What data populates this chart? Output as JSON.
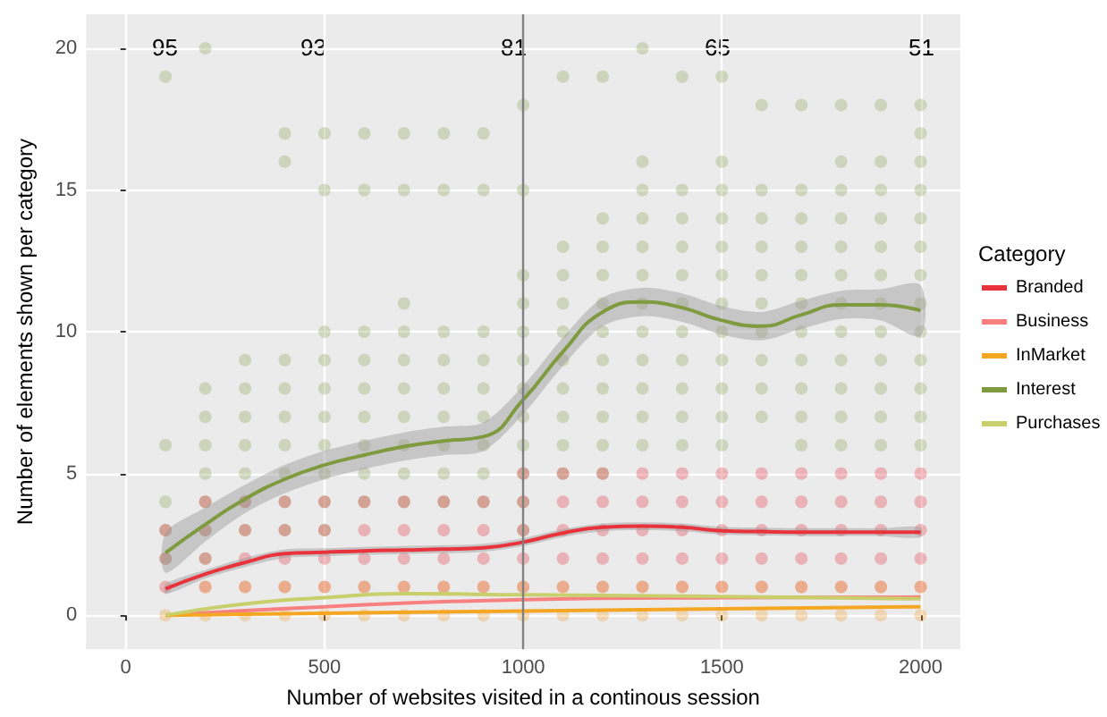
{
  "chart_data": {
    "type": "line",
    "xlabel": "Number of websites visited in a continous session",
    "ylabel": "Number of elements shown per category",
    "legend_title": "Category",
    "legend": "right",
    "grid": true,
    "xlim": [
      -100,
      2100
    ],
    "ylim": [
      -1.2,
      21.2
    ],
    "xticks": [
      0,
      500,
      1000,
      1500,
      2000
    ],
    "yticks": [
      0,
      5,
      10,
      15,
      20
    ],
    "ref_lines": [
      {
        "axis": "x",
        "value": 1000,
        "color": "#7f7f7f"
      }
    ],
    "annotations": [
      "95",
      "93",
      "81",
      "65",
      "51"
    ],
    "series": [
      {
        "type": "scatter",
        "marker": "circle",
        "color": "#8a9a50",
        "x": [
          100,
          100,
          100,
          100,
          100,
          200,
          200,
          200,
          200,
          200,
          200,
          200,
          200,
          300,
          300,
          300,
          300,
          300,
          300,
          300,
          400,
          400,
          400,
          400,
          400,
          400,
          400,
          400,
          400,
          500,
          500,
          500,
          500,
          500,
          500,
          500,
          500,
          500,
          500,
          600,
          600,
          600,
          600,
          600,
          600,
          600,
          600,
          600,
          700,
          700,
          700,
          700,
          700,
          700,
          700,
          700,
          700,
          700,
          800,
          800,
          800,
          800,
          800,
          800,
          800,
          800,
          800,
          900,
          900,
          900,
          900,
          900,
          900,
          900,
          900,
          900,
          1000,
          1000,
          1000,
          1000,
          1000,
          1000,
          1000,
          1000,
          1000,
          1000,
          1000,
          1000,
          1100,
          1100,
          1100,
          1100,
          1100,
          1100,
          1100,
          1100,
          1100,
          1100,
          1200,
          1200,
          1200,
          1200,
          1200,
          1200,
          1200,
          1200,
          1200,
          1200,
          1200,
          1300,
          1300,
          1300,
          1300,
          1300,
          1300,
          1300,
          1300,
          1300,
          1300,
          1300,
          1300,
          1400,
          1400,
          1400,
          1400,
          1400,
          1400,
          1400,
          1400,
          1400,
          1400,
          1400,
          1500,
          1500,
          1500,
          1500,
          1500,
          1500,
          1500,
          1500,
          1500,
          1500,
          1500,
          1500,
          1600,
          1600,
          1600,
          1600,
          1600,
          1600,
          1600,
          1600,
          1600,
          1600,
          1700,
          1700,
          1700,
          1700,
          1700,
          1700,
          1700,
          1700,
          1700,
          1700,
          1700,
          1800,
          1800,
          1800,
          1800,
          1800,
          1800,
          1800,
          1800,
          1800,
          1800,
          1800,
          1800,
          1900,
          1900,
          1900,
          1900,
          1900,
          1900,
          1900,
          1900,
          1900,
          1900,
          1900,
          1900,
          2000,
          2000,
          2000,
          2000,
          2000,
          2000,
          2000,
          2000,
          2000,
          2000,
          2000,
          2000,
          2000
        ],
        "values": [
          2,
          3,
          4,
          6,
          19,
          2,
          3,
          4,
          5,
          6,
          7,
          8,
          20,
          3,
          4,
          5,
          6,
          7,
          8,
          9,
          3,
          4,
          5,
          6,
          7,
          8,
          9,
          16,
          17,
          3,
          4,
          5,
          6,
          7,
          8,
          9,
          10,
          15,
          17,
          4,
          5,
          6,
          7,
          8,
          9,
          10,
          15,
          17,
          4,
          5,
          6,
          7,
          8,
          9,
          10,
          11,
          15,
          17,
          4,
          5,
          6,
          7,
          8,
          9,
          10,
          15,
          17,
          4,
          5,
          6,
          7,
          8,
          9,
          10,
          15,
          17,
          3,
          4,
          5,
          6,
          7,
          8,
          9,
          10,
          11,
          12,
          15,
          18,
          5,
          6,
          7,
          8,
          9,
          10,
          11,
          12,
          13,
          19,
          5,
          6,
          7,
          8,
          9,
          10,
          11,
          12,
          13,
          14,
          19,
          6,
          7,
          8,
          9,
          10,
          11,
          12,
          13,
          14,
          15,
          16,
          20,
          6,
          7,
          8,
          9,
          10,
          11,
          12,
          13,
          14,
          15,
          19,
          6,
          7,
          8,
          9,
          10,
          11,
          12,
          13,
          14,
          15,
          16,
          19,
          7,
          8,
          9,
          10,
          11,
          12,
          13,
          14,
          15,
          18,
          6,
          7,
          8,
          9,
          10,
          11,
          12,
          13,
          14,
          15,
          18,
          6,
          7,
          8,
          9,
          10,
          11,
          12,
          13,
          14,
          15,
          16,
          18,
          6,
          7,
          8,
          9,
          10,
          11,
          12,
          13,
          14,
          15,
          16,
          18,
          6,
          7,
          8,
          9,
          10,
          11,
          12,
          13,
          14,
          15,
          16,
          17,
          18
        ]
      },
      {
        "type": "scatter",
        "marker": "circle",
        "color": "#e0303a",
        "x": [
          100,
          100,
          100,
          200,
          200,
          200,
          200,
          300,
          300,
          300,
          300,
          400,
          400,
          400,
          400,
          500,
          500,
          500,
          500,
          600,
          600,
          600,
          600,
          700,
          700,
          700,
          700,
          800,
          800,
          800,
          800,
          900,
          900,
          900,
          900,
          1000,
          1000,
          1000,
          1000,
          1000,
          1100,
          1100,
          1100,
          1100,
          1100,
          1200,
          1200,
          1200,
          1200,
          1200,
          1300,
          1300,
          1300,
          1300,
          1300,
          1400,
          1400,
          1400,
          1400,
          1400,
          1500,
          1500,
          1500,
          1500,
          1500,
          1600,
          1600,
          1600,
          1600,
          1600,
          1700,
          1700,
          1700,
          1700,
          1700,
          1800,
          1800,
          1800,
          1800,
          1800,
          1900,
          1900,
          1900,
          1900,
          1900,
          2000,
          2000,
          2000,
          2000,
          2000
        ],
        "values": [
          1,
          2,
          3,
          1,
          2,
          3,
          4,
          1,
          2,
          3,
          4,
          1,
          2,
          3,
          4,
          1,
          2,
          3,
          4,
          1,
          2,
          3,
          4,
          1,
          2,
          3,
          4,
          1,
          2,
          3,
          4,
          1,
          2,
          3,
          4,
          1,
          2,
          3,
          4,
          5,
          1,
          2,
          3,
          4,
          5,
          1,
          2,
          3,
          4,
          5,
          1,
          2,
          3,
          4,
          5,
          1,
          2,
          3,
          4,
          5,
          1,
          2,
          3,
          4,
          5,
          1,
          2,
          3,
          4,
          5,
          1,
          2,
          3,
          4,
          5,
          1,
          2,
          3,
          4,
          5,
          1,
          2,
          3,
          4,
          5,
          1,
          2,
          3,
          4,
          5
        ]
      },
      {
        "type": "scatter",
        "marker": "circle",
        "color": "#f0a030",
        "x": [
          100,
          200,
          200,
          300,
          300,
          400,
          400,
          500,
          500,
          600,
          600,
          700,
          700,
          800,
          800,
          900,
          900,
          1000,
          1000,
          1100,
          1100,
          1200,
          1200,
          1300,
          1300,
          1400,
          1400,
          1500,
          1500,
          1600,
          1600,
          1700,
          1700,
          1800,
          1800,
          1900,
          1900,
          2000,
          2000
        ],
        "values": [
          0,
          0,
          1,
          0,
          1,
          0,
          1,
          0,
          1,
          0,
          1,
          0,
          1,
          0,
          1,
          0,
          1,
          0,
          1,
          0,
          1,
          0,
          1,
          0,
          1,
          0,
          1,
          0,
          1,
          0,
          1,
          0,
          1,
          0,
          1,
          0,
          1,
          0,
          1
        ]
      },
      {
        "name": "Branded",
        "color": "#e8323c",
        "x": [
          100,
          200,
          300,
          400,
          500,
          600,
          700,
          800,
          900,
          1000,
          1100,
          1200,
          1300,
          1400,
          1500,
          1600,
          1700,
          1800,
          1900,
          2000
        ],
        "values": [
          0.93,
          1.45,
          1.86,
          2.17,
          2.22,
          2.27,
          2.3,
          2.33,
          2.38,
          2.58,
          2.9,
          3.1,
          3.14,
          3.1,
          2.98,
          2.95,
          2.93,
          2.93,
          2.93,
          2.93
        ],
        "lower": [
          0.75,
          1.3,
          1.7,
          2.02,
          2.08,
          2.13,
          2.16,
          2.19,
          2.24,
          2.44,
          2.76,
          2.96,
          3.0,
          2.96,
          2.84,
          2.81,
          2.79,
          2.79,
          2.79,
          2.75
        ],
        "upper": [
          1.11,
          1.6,
          2.02,
          2.32,
          2.36,
          2.41,
          2.44,
          2.47,
          2.52,
          2.72,
          3.04,
          3.24,
          3.28,
          3.24,
          3.12,
          3.09,
          3.07,
          3.07,
          3.07,
          3.11
        ]
      },
      {
        "name": "Business",
        "color": "#f88080",
        "x": [
          100,
          500,
          1000,
          1500,
          2000
        ],
        "values": [
          0,
          0.3,
          0.55,
          0.62,
          0.64
        ]
      },
      {
        "name": "InMarket",
        "color": "#f5a623",
        "x": [
          100,
          1000,
          2000
        ],
        "values": [
          0,
          0.15,
          0.3
        ]
      },
      {
        "name": "Interest",
        "color": "#7f9a3f",
        "x": [
          100,
          200,
          300,
          400,
          500,
          600,
          700,
          800,
          900,
          1000,
          1100,
          1200,
          1300,
          1400,
          1500,
          1600,
          1700,
          1800,
          1900,
          2000
        ],
        "values": [
          2.2,
          3.2,
          4.1,
          4.8,
          5.3,
          5.65,
          5.95,
          6.15,
          6.3,
          7.6,
          9.3,
          10.7,
          11.05,
          10.85,
          10.4,
          10.2,
          10.6,
          10.95,
          10.95,
          10.75
        ],
        "lower": [
          1.5,
          2.6,
          3.6,
          4.3,
          4.8,
          5.15,
          5.45,
          5.65,
          5.8,
          7.1,
          8.8,
          10.2,
          10.55,
          10.35,
          9.9,
          9.7,
          10.1,
          10.45,
          10.4,
          9.85
        ],
        "upper": [
          2.9,
          3.8,
          4.6,
          5.3,
          5.8,
          6.15,
          6.45,
          6.65,
          6.8,
          8.1,
          9.8,
          11.2,
          11.55,
          11.35,
          10.9,
          10.7,
          11.1,
          11.45,
          11.5,
          11.65
        ]
      },
      {
        "name": "Purchases",
        "color": "#c9cf6b",
        "x": [
          100,
          300,
          500,
          700,
          1000,
          1500,
          2000
        ],
        "values": [
          0,
          0.4,
          0.62,
          0.76,
          0.72,
          0.66,
          0.58
        ]
      }
    ]
  }
}
